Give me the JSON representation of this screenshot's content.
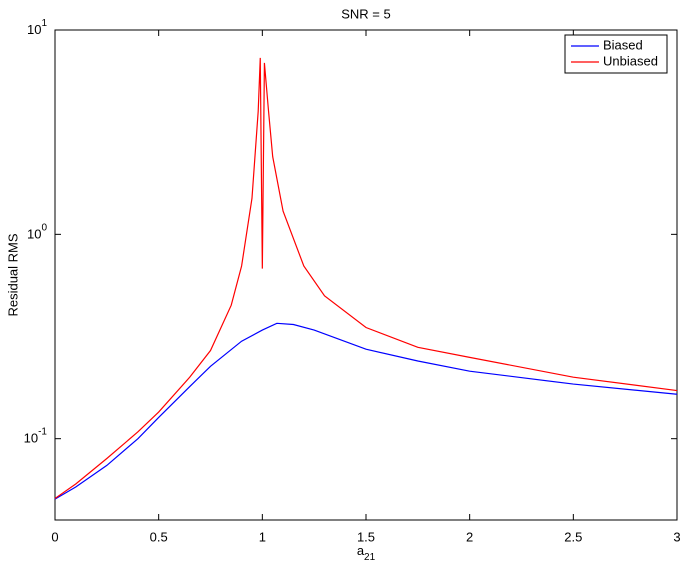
{
  "chart_data": {
    "type": "line",
    "title": "SNR = 5",
    "xlabel": "a",
    "xlabel_subscript": "21",
    "ylabel": "Residual RMS",
    "yscale": "log",
    "legend": "upper right",
    "xlim": [
      0,
      3
    ],
    "xticks": [
      0,
      0.5,
      1,
      1.5,
      2,
      2.5,
      3
    ],
    "ylim": [
      0.04,
      10
    ],
    "yticks": [
      {
        "value": 0.1,
        "label": "10",
        "exponent": "-1"
      },
      {
        "value": 1,
        "label": "10",
        "exponent": "0"
      },
      {
        "value": 10,
        "label": "10",
        "exponent": "1"
      }
    ],
    "series": [
      {
        "name": "Biased",
        "color": "#0000ff",
        "x": [
          0,
          0.1,
          0.25,
          0.4,
          0.5,
          0.65,
          0.75,
          0.9,
          1.0,
          1.07,
          1.15,
          1.25,
          1.5,
          1.75,
          2.0,
          2.5,
          3.0
        ],
        "values": [
          0.0506,
          0.058,
          0.074,
          0.1,
          0.127,
          0.18,
          0.226,
          0.3,
          0.34,
          0.367,
          0.362,
          0.34,
          0.274,
          0.24,
          0.214,
          0.185,
          0.165
        ]
      },
      {
        "name": "Unbiased",
        "color": "#ff0000",
        "x": [
          0,
          0.1,
          0.25,
          0.4,
          0.5,
          0.65,
          0.75,
          0.85,
          0.9,
          0.95,
          0.98,
          0.99,
          1.0,
          1.01,
          1.03,
          1.05,
          1.1,
          1.2,
          1.3,
          1.5,
          1.75,
          2.0,
          2.5,
          3.0
        ],
        "values": [
          0.051,
          0.06,
          0.08,
          0.108,
          0.135,
          0.2,
          0.27,
          0.45,
          0.7,
          1.5,
          4,
          7.3,
          0.68,
          6.9,
          4,
          2.4,
          1.3,
          0.7,
          0.5,
          0.35,
          0.28,
          0.25,
          0.2,
          0.172
        ]
      }
    ]
  }
}
